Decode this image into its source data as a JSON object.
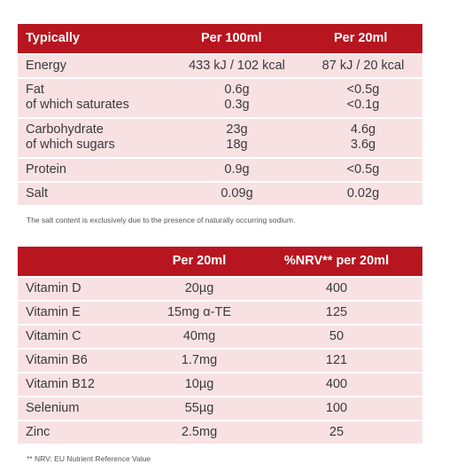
{
  "nutrition": {
    "headers": [
      "Typically",
      "Per 100ml",
      "Per 20ml"
    ],
    "rows": [
      {
        "label": "Energy",
        "per100": "433 kJ / 102 kcal",
        "per20": "87 kJ / 20 kcal"
      },
      {
        "label": "Fat",
        "sub": "of which saturates",
        "per100": "0.6g",
        "per100_sub": "0.3g",
        "per20": "<0.5g",
        "per20_sub": "<0.1g"
      },
      {
        "label": "Carbohydrate",
        "sub": "of which sugars",
        "per100": "23g",
        "per100_sub": "18g",
        "per20": "4.6g",
        "per20_sub": "3.6g"
      },
      {
        "label": "Protein",
        "per100": "0.9g",
        "per20": "<0.5g"
      },
      {
        "label": "Salt",
        "per100": "0.09g",
        "per20": "0.02g"
      }
    ],
    "note": "The salt content is exclusively due to the presence of naturally occurring sodium."
  },
  "vitamins": {
    "headers": [
      "",
      "Per 20ml",
      "%NRV** per 20ml"
    ],
    "rows": [
      {
        "label": "Vitamin D",
        "per20": "20µg",
        "nrv": "400"
      },
      {
        "label": "Vitamin E",
        "per20": "15mg α-TE",
        "nrv": "125"
      },
      {
        "label": "Vitamin C",
        "per20": "40mg",
        "nrv": "50"
      },
      {
        "label": "Vitamin B6",
        "per20": "1.7mg",
        "nrv": "121"
      },
      {
        "label": "Vitamin B12",
        "per20": "10µg",
        "nrv": "400"
      },
      {
        "label": "Selenium",
        "per20": "55µg",
        "nrv": "100"
      },
      {
        "label": "Zinc",
        "per20": "2.5mg",
        "nrv": "25"
      }
    ],
    "note": "** NRV: EU Nutrient Reference Value"
  },
  "colors": {
    "header_bg": "#b7151f",
    "row_bg": "#f8e1e3"
  }
}
